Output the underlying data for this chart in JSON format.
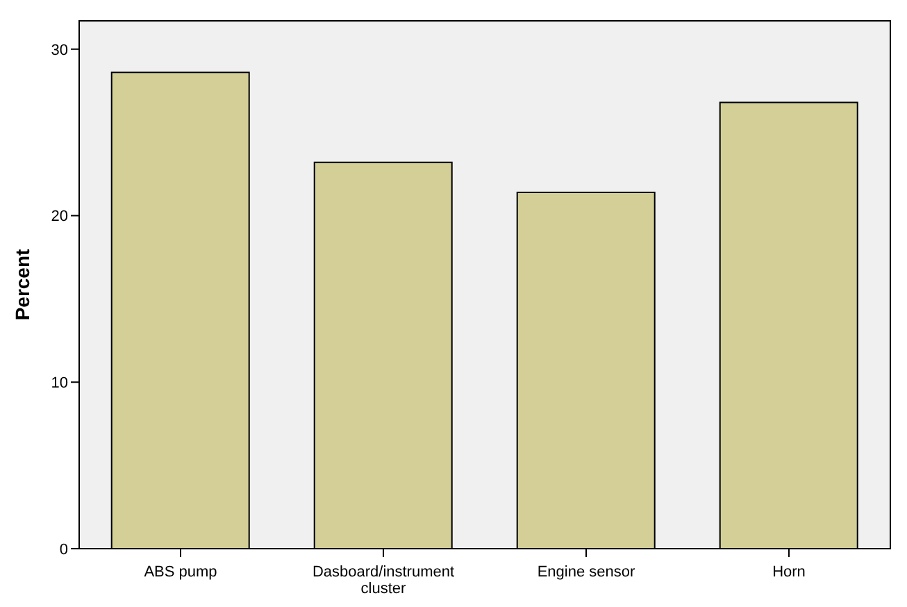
{
  "chart_data": {
    "type": "bar",
    "ylabel": "Percent",
    "categories": [
      "ABS pump",
      "Dasboard/instrument cluster",
      "Engine sensor",
      "Horn"
    ],
    "values": [
      28.6,
      23.2,
      21.4,
      26.8
    ],
    "color": "#d3cf97",
    "ylim": [
      0,
      31.7
    ],
    "yticks": [
      0,
      10,
      20,
      30
    ],
    "legend": false
  }
}
